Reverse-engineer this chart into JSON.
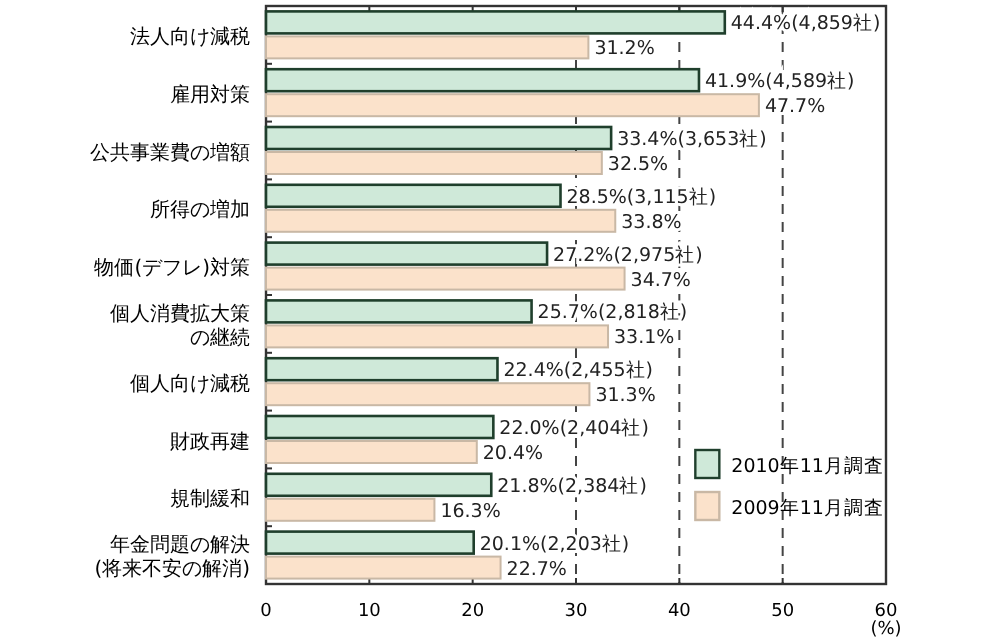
{
  "chart_data": {
    "type": "bar",
    "orientation": "horizontal",
    "xlabel": "(%)",
    "categories": [
      "法人向け減税",
      "雇用対策",
      "公共事業費の増額",
      "所得の増加",
      "物価(デフレ)対策",
      "個人消費拡大策の継続",
      "個人向け減税",
      "財政再建",
      "規制緩和",
      "年金問題の解決(将来不安の解消)"
    ],
    "series": [
      {
        "name": "2010年11月調査",
        "color": "#cfe9d9",
        "values": [
          44.4,
          41.9,
          33.4,
          28.5,
          27.2,
          25.7,
          22.4,
          22.0,
          21.8,
          20.1
        ],
        "value_labels": [
          "44.4%(4,859社)",
          "41.9%(4,589社)",
          "33.4%(3,653社)",
          "28.5%(3,115社)",
          "27.2%(2,975社)",
          "25.7%(2,818社)",
          "22.4%(2,455社)",
          "22.0%(2,404社)",
          "21.8%(2,384社)",
          "20.1%(2,203社)"
        ]
      },
      {
        "name": "2009年11月調査",
        "color": "#fbe2cb",
        "values": [
          31.2,
          47.7,
          32.5,
          33.8,
          34.7,
          33.1,
          31.3,
          20.4,
          16.3,
          22.7
        ],
        "value_labels": [
          "31.2%",
          "47.7%",
          "32.5%",
          "33.8%",
          "34.7%",
          "33.1%",
          "31.3%",
          "20.4%",
          "16.3%",
          "22.7%"
        ]
      }
    ],
    "xlim": [
      0,
      60
    ],
    "xticks": [
      0,
      10,
      20,
      30,
      40,
      50,
      60
    ],
    "ref_lines": [
      {
        "axis": "x",
        "value": 30,
        "line_style": "dashed"
      },
      {
        "axis": "x",
        "value": 40,
        "line_style": "dashed"
      },
      {
        "axis": "x",
        "value": 50,
        "line_style": "dashed"
      }
    ],
    "legend": "bottom right",
    "grid": false
  }
}
